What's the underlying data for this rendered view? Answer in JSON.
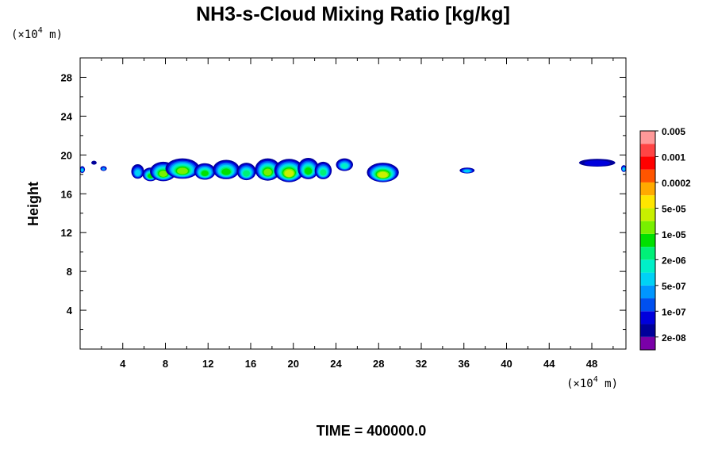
{
  "chart_data": {
    "type": "contour",
    "title": "NH3-s-Cloud Mixing Ratio [kg/kg]",
    "ylabel": "Height",
    "y_unit": {
      "prefix": "(×10",
      "exp": "4",
      "suffix": " m)"
    },
    "x_unit": {
      "prefix": "(×10",
      "exp": "4",
      "suffix": " m)"
    },
    "xlim": [
      0,
      51.2
    ],
    "ylim": [
      0,
      30
    ],
    "x_ticks": [
      4,
      8,
      12,
      16,
      20,
      24,
      28,
      32,
      36,
      40,
      44,
      48
    ],
    "y_ticks": [
      4,
      8,
      12,
      16,
      20,
      24,
      28
    ],
    "x_minor_step": 2,
    "y_minor_step": 2,
    "colorbar": {
      "colors": [
        "#7a00a8",
        "#00009a",
        "#0000dc",
        "#0050f0",
        "#0096ff",
        "#00d2f5",
        "#00f0c8",
        "#00f078",
        "#00e000",
        "#78f000",
        "#c8f000",
        "#ffe600",
        "#ffaa00",
        "#ff5500",
        "#ff0000",
        "#ff4444",
        "#ff9999"
      ],
      "labels": [
        "2e-08",
        "1e-07",
        "5e-07",
        "2e-06",
        "1e-05",
        "5e-05",
        "0.0002",
        "0.001",
        "0.005"
      ]
    },
    "cloud_blobs": [
      {
        "x": 0.2,
        "y": 18.5,
        "w": 0.5,
        "h": 0.7,
        "level": 5
      },
      {
        "x": 1.3,
        "y": 19.2,
        "w": 0.5,
        "h": 0.4,
        "level": 1
      },
      {
        "x": 2.2,
        "y": 18.6,
        "w": 0.6,
        "h": 0.5,
        "level": 4
      },
      {
        "x": 5.4,
        "y": 18.3,
        "w": 1.2,
        "h": 1.5,
        "level": 5
      },
      {
        "x": 6.6,
        "y": 18.0,
        "w": 1.5,
        "h": 1.4,
        "level": 8
      },
      {
        "x": 7.8,
        "y": 18.3,
        "w": 2.5,
        "h": 2.0,
        "level": 9
      },
      {
        "x": 9.6,
        "y": 18.6,
        "w": 3.2,
        "h": 2.1,
        "level": 9
      },
      {
        "x": 11.7,
        "y": 18.3,
        "w": 2.0,
        "h": 1.7,
        "level": 8
      },
      {
        "x": 13.7,
        "y": 18.5,
        "w": 2.5,
        "h": 2.0,
        "level": 8
      },
      {
        "x": 15.6,
        "y": 18.3,
        "w": 1.8,
        "h": 1.8,
        "level": 7
      },
      {
        "x": 17.6,
        "y": 18.5,
        "w": 2.4,
        "h": 2.3,
        "level": 9
      },
      {
        "x": 19.6,
        "y": 18.4,
        "w": 2.8,
        "h": 2.4,
        "level": 10
      },
      {
        "x": 21.4,
        "y": 18.6,
        "w": 2.0,
        "h": 2.2,
        "level": 8
      },
      {
        "x": 22.8,
        "y": 18.4,
        "w": 1.6,
        "h": 1.8,
        "level": 7
      },
      {
        "x": 24.8,
        "y": 19.0,
        "w": 1.6,
        "h": 1.3,
        "level": 6
      },
      {
        "x": 28.4,
        "y": 18.2,
        "w": 3.0,
        "h": 2.0,
        "level": 10
      },
      {
        "x": 36.3,
        "y": 18.4,
        "w": 1.4,
        "h": 0.6,
        "level": 5
      },
      {
        "x": 48.5,
        "y": 19.2,
        "w": 3.4,
        "h": 0.8,
        "level": 2
      },
      {
        "x": 51.0,
        "y": 18.6,
        "w": 0.5,
        "h": 0.7,
        "level": 5
      }
    ]
  },
  "footer": {
    "time_label": "TIME = 400000.0"
  }
}
